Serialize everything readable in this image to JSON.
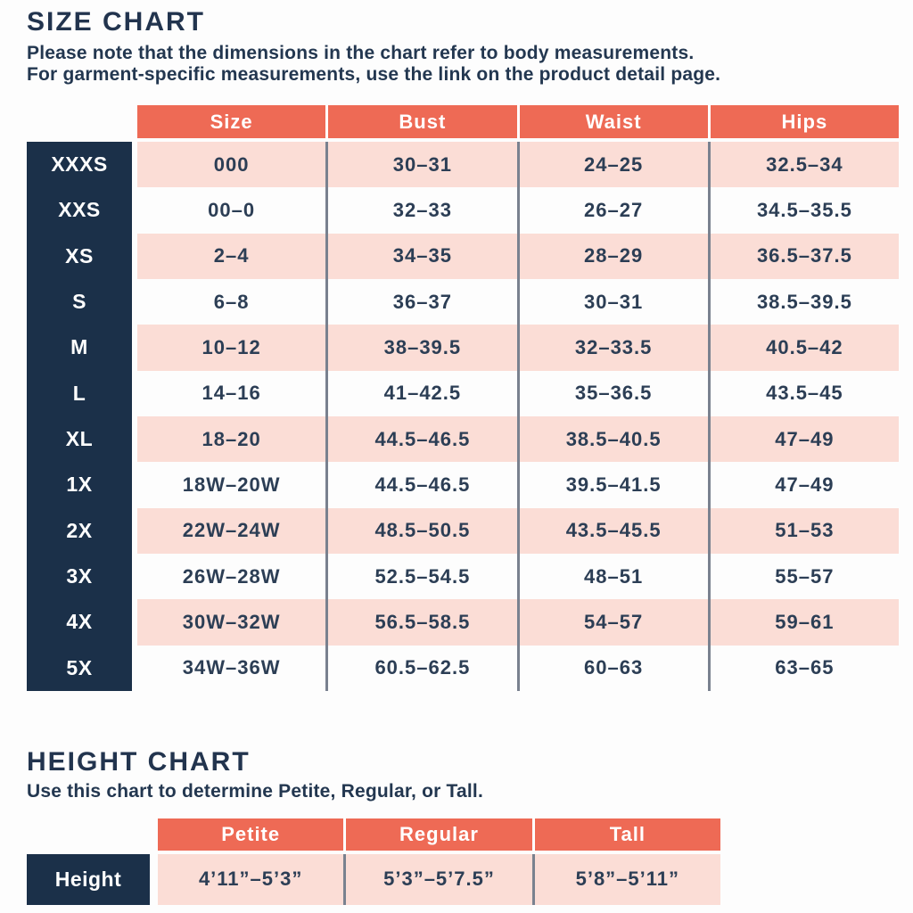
{
  "colors": {
    "coral": "#ee6a55",
    "pink": "#fbddd6",
    "navy": "#1b3049",
    "text": "#2c3e55",
    "divider": "#79818f"
  },
  "size_chart": {
    "title": "SIZE CHART",
    "subtitle_line1": "Please note that the dimensions in the chart refer to body measurements.",
    "subtitle_line2": "For garment-specific measurements, use the link on the product detail page.",
    "columns": [
      "Size",
      "Bust",
      "Waist",
      "Hips"
    ],
    "rows": [
      {
        "label": "XXXS",
        "values": [
          "000",
          "30–31",
          "24–25",
          "32.5–34"
        ]
      },
      {
        "label": "XXS",
        "values": [
          "00–0",
          "32–33",
          "26–27",
          "34.5–35.5"
        ]
      },
      {
        "label": "XS",
        "values": [
          "2–4",
          "34–35",
          "28–29",
          "36.5–37.5"
        ]
      },
      {
        "label": "S",
        "values": [
          "6–8",
          "36–37",
          "30–31",
          "38.5–39.5"
        ]
      },
      {
        "label": "M",
        "values": [
          "10–12",
          "38–39.5",
          "32–33.5",
          "40.5–42"
        ]
      },
      {
        "label": "L",
        "values": [
          "14–16",
          "41–42.5",
          "35–36.5",
          "43.5–45"
        ]
      },
      {
        "label": "XL",
        "values": [
          "18–20",
          "44.5–46.5",
          "38.5–40.5",
          "47–49"
        ]
      },
      {
        "label": "1X",
        "values": [
          "18W–20W",
          "44.5–46.5",
          "39.5–41.5",
          "47–49"
        ]
      },
      {
        "label": "2X",
        "values": [
          "22W–24W",
          "48.5–50.5",
          "43.5–45.5",
          "51–53"
        ]
      },
      {
        "label": "3X",
        "values": [
          "26W–28W",
          "52.5–54.5",
          "48–51",
          "55–57"
        ]
      },
      {
        "label": "4X",
        "values": [
          "30W–32W",
          "56.5–58.5",
          "54–57",
          "59–61"
        ]
      },
      {
        "label": "5X",
        "values": [
          "34W–36W",
          "60.5–62.5",
          "60–63",
          "63–65"
        ]
      }
    ]
  },
  "height_chart": {
    "title": "HEIGHT CHART",
    "subtitle": "Use this chart to determine Petite, Regular, or Tall.",
    "columns": [
      "Petite",
      "Regular",
      "Tall"
    ],
    "row_label": "Height",
    "values": [
      "4’11”–5’3”",
      "5’3”–5’7.5”",
      "5’8”–5’11”"
    ]
  }
}
